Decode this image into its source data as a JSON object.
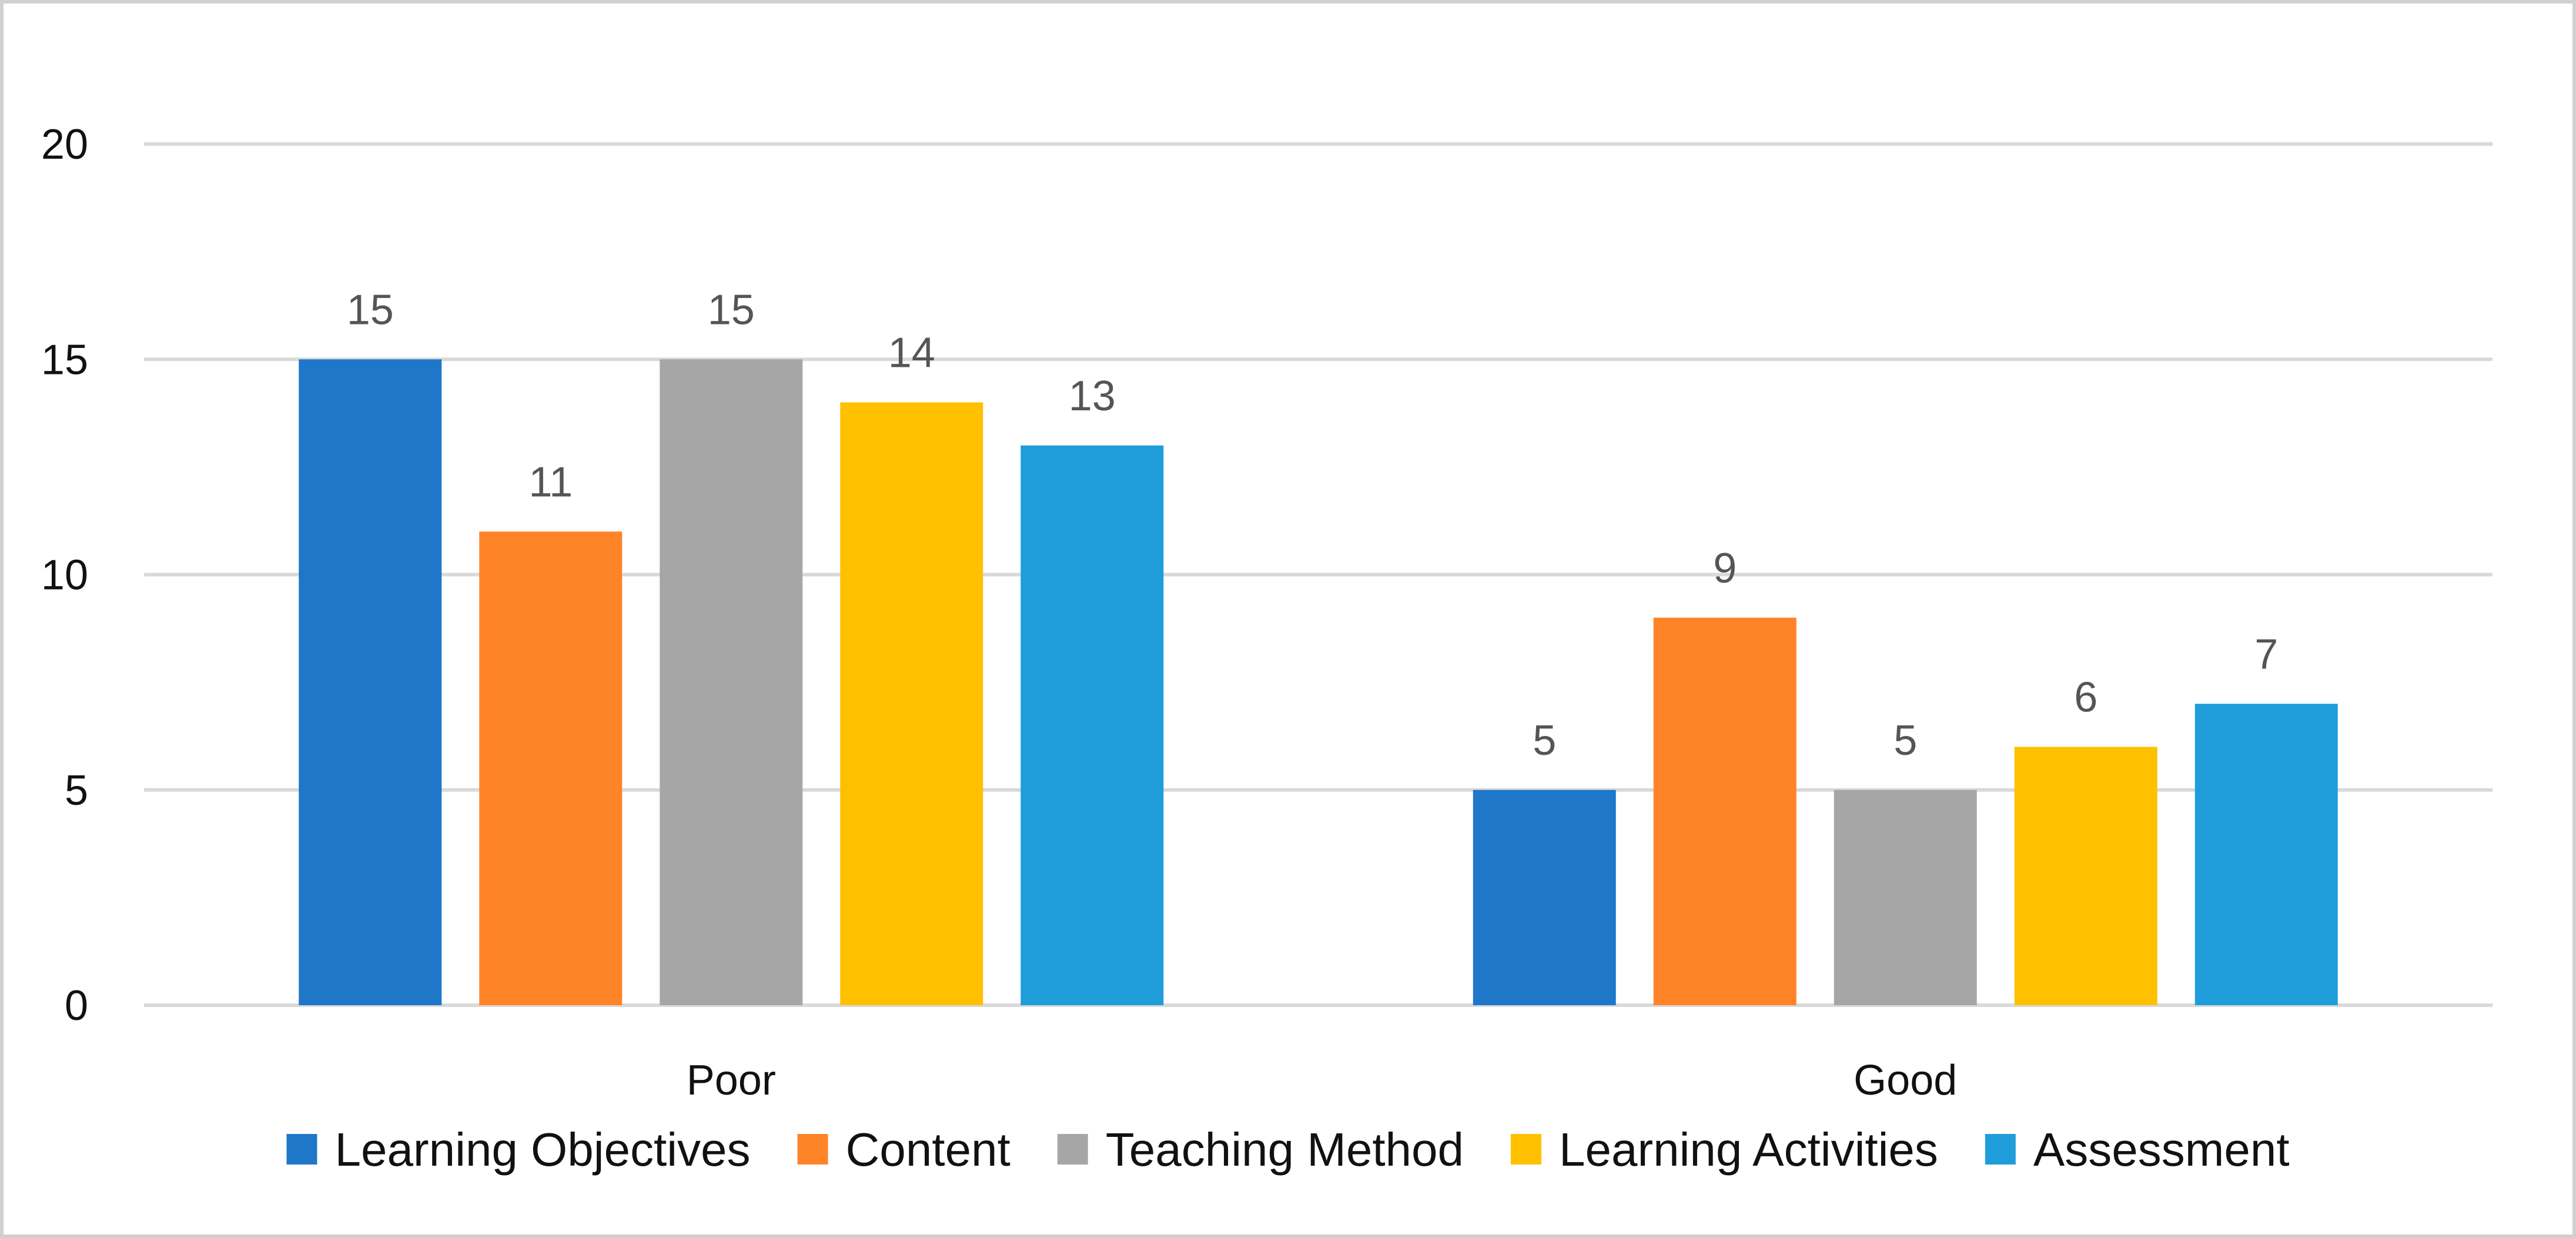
{
  "chart_data": {
    "type": "bar",
    "title": "",
    "xlabel": "",
    "ylabel": "",
    "categories": [
      "Poor",
      "Good"
    ],
    "ylim": [
      0,
      20
    ],
    "yticks": [
      0,
      5,
      10,
      15,
      20
    ],
    "grid": true,
    "legend_position": "bottom",
    "data_labels": true,
    "series": [
      {
        "name": "Learning Objectives",
        "values": [
          15,
          5
        ],
        "color": "#1F77C9"
      },
      {
        "name": "Content",
        "values": [
          11,
          9
        ],
        "color": "#FF8428"
      },
      {
        "name": "Teaching Method",
        "values": [
          15,
          5
        ],
        "color": "#A6A6A6"
      },
      {
        "name": "Learning Activities",
        "values": [
          14,
          6
        ],
        "color": "#FFC000"
      },
      {
        "name": "Assessment",
        "values": [
          13,
          7
        ],
        "color": "#1F9DDB"
      }
    ]
  }
}
